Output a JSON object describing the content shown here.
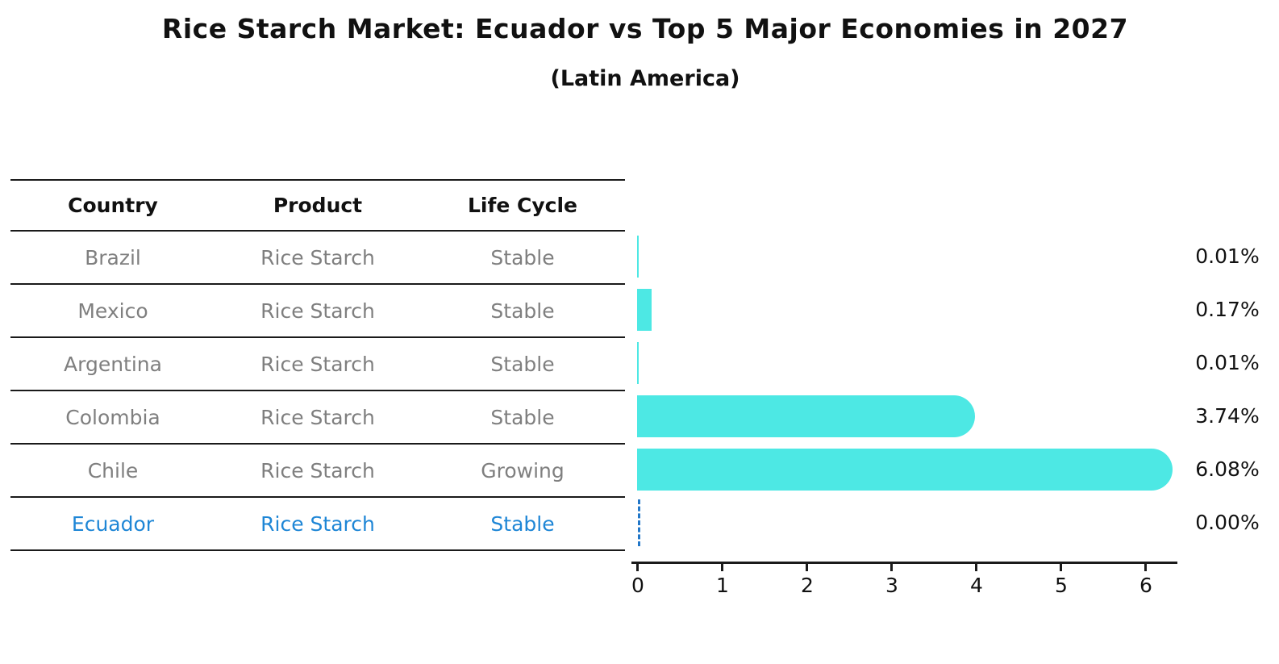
{
  "title": "Rice Starch Market: Ecuador vs Top 5 Major Economies in 2027",
  "subtitle": "(Latin America)",
  "table": {
    "headers": [
      "Country",
      "Product",
      "Life Cycle"
    ],
    "rows": [
      {
        "country": "Brazil",
        "product": "Rice Starch",
        "life_cycle": "Stable",
        "highlight": false
      },
      {
        "country": "Mexico",
        "product": "Rice Starch",
        "life_cycle": "Stable",
        "highlight": false
      },
      {
        "country": "Argentina",
        "product": "Rice Starch",
        "life_cycle": "Stable",
        "highlight": false
      },
      {
        "country": "Colombia",
        "product": "Rice Starch",
        "life_cycle": "Stable",
        "highlight": false
      },
      {
        "country": "Chile",
        "product": "Rice Starch",
        "life_cycle": "Growing",
        "highlight": false
      },
      {
        "country": "Ecuador",
        "product": "Rice Starch",
        "life_cycle": "Stable",
        "highlight": true
      }
    ]
  },
  "chart_data": {
    "type": "bar",
    "orientation": "horizontal",
    "title": "Rice Starch Market: Ecuador vs Top 5 Major Economies in 2027",
    "subtitle": "(Latin America)",
    "categories": [
      "Brazil",
      "Mexico",
      "Argentina",
      "Colombia",
      "Chile",
      "Ecuador"
    ],
    "values": [
      0.01,
      0.17,
      0.01,
      3.74,
      6.08,
      0.0
    ],
    "value_labels": [
      "0.01%",
      "0.17%",
      "0.01%",
      "3.74%",
      "6.08%",
      "0.00%"
    ],
    "unit": "%",
    "xlim": [
      0,
      6.4
    ],
    "xticks": [
      0,
      1,
      2,
      3,
      4,
      5,
      6
    ],
    "grid": false,
    "legend": false,
    "bar_color": "#4de8e4",
    "highlight_color": "#1e86d6",
    "zero_marker": "dashed-line"
  },
  "colors": {
    "background": "#ffffff",
    "bar": "#4de8e4",
    "highlight_blue": "#1e86d6",
    "table_text_gray": "#7f7f7f",
    "text_black": "#111111"
  }
}
